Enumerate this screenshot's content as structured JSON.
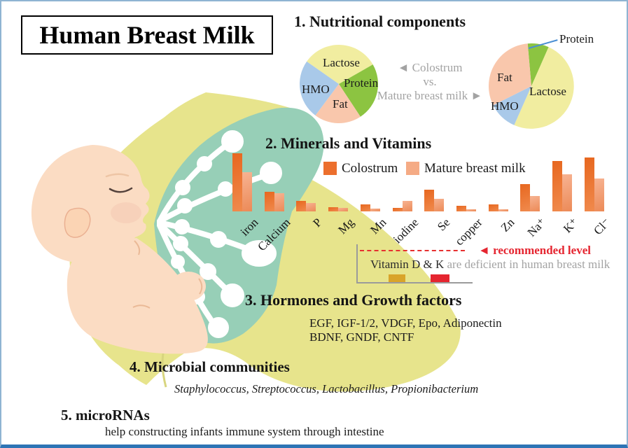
{
  "title": "Human Breast Milk",
  "sections": {
    "s1": {
      "heading": "1. Nutritional components"
    },
    "s2": {
      "heading": "2. Minerals and Vitamins"
    },
    "s3": {
      "heading": "3. Hormones and Growth factors",
      "line1": "EGF, IGF-1/2, VDGF, Epo, Adiponectin",
      "line2": "BDNF, GNDF, CNTF"
    },
    "s4": {
      "heading": "4. Microbial communities",
      "line1": "Staphylococcus, Streptococcus, Lactobacillus, Propionibacterium"
    },
    "s5": {
      "heading": "5. microRNAs",
      "line1": "help constructing infants immune system through intestine"
    }
  },
  "comparison_label": {
    "line1": "◄ Colostrum",
    "line2": "vs.",
    "line3": "Mature breast milk ►"
  },
  "colors": {
    "colostrum_orange": "#ec6f2d",
    "mature_salmon": "#f5ab85",
    "pie_lactose_yellow": "#f1eda0",
    "pie_protein_green": "#8cc441",
    "pie_fat_peach": "#f9c7ac",
    "pie_hmo_blue": "#a9c9e9",
    "breast_teal": "#97cfb7",
    "blanket_yellow": "#e7e48c",
    "baby_skin": "#fbdcc3",
    "frame_blue": "#8fb4d2",
    "frame_bottom_blue": "#2e74b5",
    "gray_text": "#a3a3a3",
    "recommended_red": "#e52530",
    "vitamin_d_gold": "#d9a42a",
    "callout_line_blue": "#4a8fd3"
  },
  "chart_data": [
    {
      "id": "colostrum_pie",
      "type": "pie",
      "title": "Colostrum",
      "start_angle_deg": -55,
      "unit": "percent (estimated from slice angles)",
      "slices": [
        {
          "label": "Lactose",
          "value": 32,
          "color": "#f1eda0"
        },
        {
          "label": "Protein",
          "value": 24,
          "color": "#8cc441"
        },
        {
          "label": "Fat",
          "value": 19.5,
          "color": "#f9c7ac"
        },
        {
          "label": "HMO",
          "value": 24.5,
          "color": "#a9c9e9"
        }
      ]
    },
    {
      "id": "mature_breast_milk_pie",
      "type": "pie",
      "title": "Mature breast milk",
      "start_angle_deg": -5,
      "unit": "percent (estimated from slice angles)",
      "callout_label": "Protein",
      "slices": [
        {
          "label": "Protein",
          "value": 8,
          "color": "#8cc441"
        },
        {
          "label": "Lactose",
          "value": 50,
          "color": "#f1eda0"
        },
        {
          "label": "HMO",
          "value": 11,
          "color": "#a9c9e9"
        },
        {
          "label": "Fat",
          "value": 31,
          "color": "#f9c7ac"
        }
      ]
    },
    {
      "id": "minerals_and_vitamins_bars",
      "type": "bar",
      "title": "2. Minerals and Vitamins",
      "categories": [
        "iron",
        "Calcium",
        "P",
        "Mg",
        "Mn",
        "iodine",
        "Se",
        "copper",
        "Zn",
        "Na⁺",
        "K⁺",
        "Cl⁻"
      ],
      "series": [
        {
          "name": "Colostrum",
          "color": "#ec6f2d",
          "gradient": [
            "#e7671f",
            "#f08a4d"
          ],
          "values": [
            100,
            34,
            18,
            7,
            12,
            6,
            37,
            10,
            12,
            47,
            87,
            93
          ]
        },
        {
          "name": "Mature breast milk",
          "color": "#f5ab85",
          "gradient": [
            "#f7b392",
            "#ec8a57"
          ],
          "values": [
            67,
            31,
            14,
            6,
            5,
            18,
            22,
            4,
            4,
            27,
            64,
            57
          ]
        }
      ],
      "ylabel": "relative content (no axis shown)",
      "ylim": [
        0,
        100
      ],
      "grid": false,
      "legend_position": "top"
    },
    {
      "id": "vitamin_deficiency_bars",
      "type": "bar",
      "categories": [
        "Vitamin D",
        "Vitamin K"
      ],
      "values": [
        24,
        24
      ],
      "colors": [
        "#d9a42a",
        "#e52530"
      ],
      "ylim": [
        0,
        100
      ],
      "reference_line": {
        "value": 100,
        "label": "◄ recommended level",
        "style": "dashed",
        "color": "#e52530"
      },
      "annotation": {
        "bold": "Vitamin D & K",
        "rest": " are deficient in human breast milk"
      }
    }
  ]
}
